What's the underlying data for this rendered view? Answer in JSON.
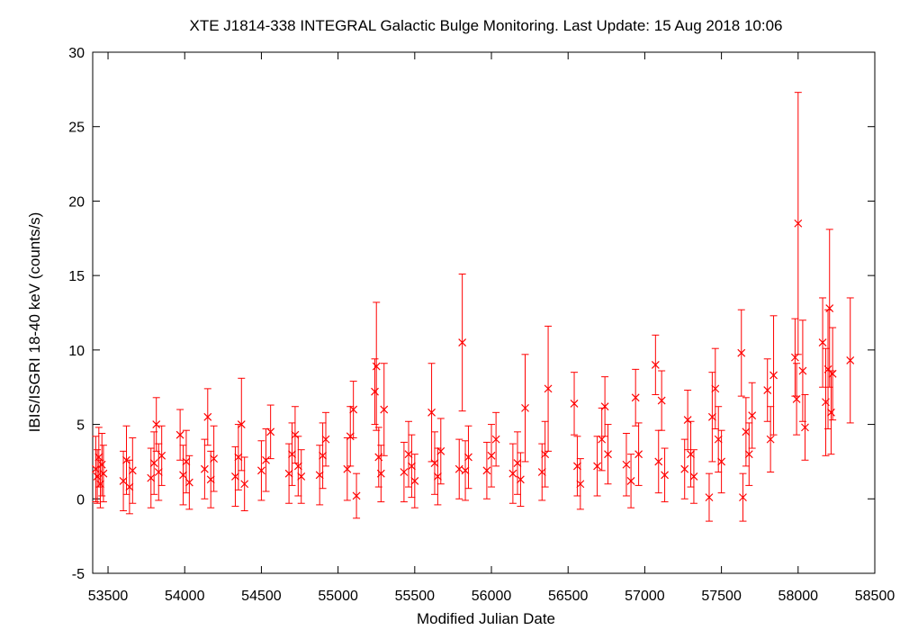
{
  "chart_data": {
    "type": "scatter",
    "title": "XTE J1814-338   INTEGRAL Galactic Bulge Monitoring.  Last Update: 15 Aug 2018 10:06",
    "xlabel": "Modified Julian Date",
    "ylabel": "IBIS/ISGRI 18-40 keV (counts/s)",
    "xlim": [
      53400,
      58500
    ],
    "ylim": [
      -5,
      30
    ],
    "x_ticks": [
      53500,
      54000,
      54500,
      55000,
      55500,
      56000,
      56500,
      57000,
      57500,
      58000,
      58500
    ],
    "y_ticks": [
      -5,
      0,
      5,
      10,
      15,
      20,
      25,
      30
    ],
    "x_tick_labels": [
      "53500",
      "54000",
      "54500",
      "55000",
      "55500",
      "56000",
      "56500",
      "57000",
      "57500",
      "58000",
      "58500"
    ],
    "y_tick_labels": [
      "-5",
      "0",
      "5",
      "10",
      "15",
      "20",
      "25",
      "30"
    ],
    "marker": "x",
    "color": "#ff0000",
    "grid": false,
    "legend": "none",
    "series": [
      {
        "points": [
          {
            "x": 53420,
            "y": 2.0,
            "err": 2.2
          },
          {
            "x": 53430,
            "y": 1.5,
            "err": 1.8
          },
          {
            "x": 53440,
            "y": 2.8,
            "err": 2.0
          },
          {
            "x": 53450,
            "y": 1.0,
            "err": 1.6
          },
          {
            "x": 53460,
            "y": 2.3,
            "err": 2.1
          },
          {
            "x": 53470,
            "y": 1.7,
            "err": 1.9
          },
          {
            "x": 53600,
            "y": 1.2,
            "err": 2.0
          },
          {
            "x": 53620,
            "y": 2.6,
            "err": 2.3
          },
          {
            "x": 53640,
            "y": 0.8,
            "err": 1.8
          },
          {
            "x": 53660,
            "y": 1.9,
            "err": 2.2
          },
          {
            "x": 53780,
            "y": 1.4,
            "err": 2.0
          },
          {
            "x": 53800,
            "y": 2.4,
            "err": 2.1
          },
          {
            "x": 53815,
            "y": 5.0,
            "err": 1.8
          },
          {
            "x": 53830,
            "y": 1.8,
            "err": 1.9
          },
          {
            "x": 53850,
            "y": 2.9,
            "err": 2.0
          },
          {
            "x": 53970,
            "y": 4.3,
            "err": 1.7
          },
          {
            "x": 53990,
            "y": 1.6,
            "err": 2.0
          },
          {
            "x": 54010,
            "y": 2.5,
            "err": 2.1
          },
          {
            "x": 54030,
            "y": 1.1,
            "err": 1.8
          },
          {
            "x": 54130,
            "y": 2.0,
            "err": 2.0
          },
          {
            "x": 54150,
            "y": 5.5,
            "err": 1.9
          },
          {
            "x": 54170,
            "y": 1.3,
            "err": 1.9
          },
          {
            "x": 54190,
            "y": 2.7,
            "err": 2.2
          },
          {
            "x": 54330,
            "y": 1.5,
            "err": 2.0
          },
          {
            "x": 54350,
            "y": 2.8,
            "err": 2.2
          },
          {
            "x": 54370,
            "y": 5.0,
            "err": 3.1
          },
          {
            "x": 54390,
            "y": 1.0,
            "err": 1.8
          },
          {
            "x": 54500,
            "y": 1.9,
            "err": 2.0
          },
          {
            "x": 54530,
            "y": 2.6,
            "err": 2.1
          },
          {
            "x": 54560,
            "y": 4.5,
            "err": 1.8
          },
          {
            "x": 54680,
            "y": 1.7,
            "err": 2.0
          },
          {
            "x": 54700,
            "y": 3.0,
            "err": 2.1
          },
          {
            "x": 54720,
            "y": 4.3,
            "err": 1.9
          },
          {
            "x": 54740,
            "y": 2.2,
            "err": 2.0
          },
          {
            "x": 54760,
            "y": 1.5,
            "err": 1.8
          },
          {
            "x": 54880,
            "y": 1.6,
            "err": 2.0
          },
          {
            "x": 54900,
            "y": 2.9,
            "err": 2.2
          },
          {
            "x": 54920,
            "y": 4.0,
            "err": 1.8
          },
          {
            "x": 55060,
            "y": 2.0,
            "err": 2.1
          },
          {
            "x": 55080,
            "y": 4.2,
            "err": 2.0
          },
          {
            "x": 55100,
            "y": 6.0,
            "err": 1.9
          },
          {
            "x": 55120,
            "y": 0.2,
            "err": 1.5
          },
          {
            "x": 55240,
            "y": 7.2,
            "err": 2.2
          },
          {
            "x": 55250,
            "y": 8.9,
            "err": 4.3
          },
          {
            "x": 55265,
            "y": 2.8,
            "err": 2.0
          },
          {
            "x": 55280,
            "y": 1.7,
            "err": 1.9
          },
          {
            "x": 55300,
            "y": 6.0,
            "err": 3.1
          },
          {
            "x": 55430,
            "y": 1.8,
            "err": 2.0
          },
          {
            "x": 55460,
            "y": 3.0,
            "err": 2.2
          },
          {
            "x": 55480,
            "y": 2.2,
            "err": 2.1
          },
          {
            "x": 55500,
            "y": 1.2,
            "err": 1.8
          },
          {
            "x": 55610,
            "y": 5.8,
            "err": 3.3
          },
          {
            "x": 55630,
            "y": 2.4,
            "err": 2.1
          },
          {
            "x": 55650,
            "y": 1.5,
            "err": 1.9
          },
          {
            "x": 55670,
            "y": 3.2,
            "err": 2.2
          },
          {
            "x": 55790,
            "y": 2.0,
            "err": 2.0
          },
          {
            "x": 55810,
            "y": 10.5,
            "err": 4.6
          },
          {
            "x": 55830,
            "y": 1.9,
            "err": 2.0
          },
          {
            "x": 55850,
            "y": 2.8,
            "err": 2.1
          },
          {
            "x": 55970,
            "y": 1.9,
            "err": 1.9
          },
          {
            "x": 56000,
            "y": 2.9,
            "err": 2.1
          },
          {
            "x": 56030,
            "y": 4.0,
            "err": 1.8
          },
          {
            "x": 56140,
            "y": 1.7,
            "err": 2.0
          },
          {
            "x": 56170,
            "y": 2.4,
            "err": 2.1
          },
          {
            "x": 56190,
            "y": 1.3,
            "err": 1.8
          },
          {
            "x": 56220,
            "y": 6.1,
            "err": 3.6
          },
          {
            "x": 56330,
            "y": 1.8,
            "err": 1.9
          },
          {
            "x": 56350,
            "y": 3.0,
            "err": 2.2
          },
          {
            "x": 56370,
            "y": 7.4,
            "err": 4.2
          },
          {
            "x": 56540,
            "y": 6.4,
            "err": 2.1
          },
          {
            "x": 56560,
            "y": 2.2,
            "err": 2.0
          },
          {
            "x": 56580,
            "y": 1.0,
            "err": 1.7
          },
          {
            "x": 56690,
            "y": 2.2,
            "err": 2.0
          },
          {
            "x": 56720,
            "y": 4.0,
            "err": 2.1
          },
          {
            "x": 56740,
            "y": 6.2,
            "err": 2.0
          },
          {
            "x": 56760,
            "y": 3.0,
            "err": 2.0
          },
          {
            "x": 56880,
            "y": 2.3,
            "err": 2.1
          },
          {
            "x": 56910,
            "y": 1.2,
            "err": 1.8
          },
          {
            "x": 56940,
            "y": 6.8,
            "err": 1.9
          },
          {
            "x": 56960,
            "y": 3.0,
            "err": 2.1
          },
          {
            "x": 57070,
            "y": 9.0,
            "err": 2.0
          },
          {
            "x": 57090,
            "y": 2.5,
            "err": 2.1
          },
          {
            "x": 57110,
            "y": 6.6,
            "err": 2.0
          },
          {
            "x": 57130,
            "y": 1.6,
            "err": 1.8
          },
          {
            "x": 57260,
            "y": 2.0,
            "err": 2.0
          },
          {
            "x": 57280,
            "y": 5.3,
            "err": 2.0
          },
          {
            "x": 57300,
            "y": 3.0,
            "err": 2.2
          },
          {
            "x": 57320,
            "y": 1.5,
            "err": 1.8
          },
          {
            "x": 57420,
            "y": 0.1,
            "err": 1.6
          },
          {
            "x": 57440,
            "y": 5.5,
            "err": 3.0
          },
          {
            "x": 57460,
            "y": 7.4,
            "err": 2.7
          },
          {
            "x": 57480,
            "y": 4.0,
            "err": 2.2
          },
          {
            "x": 57500,
            "y": 2.5,
            "err": 2.1
          },
          {
            "x": 57630,
            "y": 9.8,
            "err": 2.9
          },
          {
            "x": 57640,
            "y": 0.1,
            "err": 1.6
          },
          {
            "x": 57660,
            "y": 4.5,
            "err": 2.3
          },
          {
            "x": 57680,
            "y": 3.0,
            "err": 2.1
          },
          {
            "x": 57700,
            "y": 5.6,
            "err": 2.2
          },
          {
            "x": 57800,
            "y": 7.3,
            "err": 2.1
          },
          {
            "x": 57820,
            "y": 4.0,
            "err": 2.2
          },
          {
            "x": 57840,
            "y": 8.3,
            "err": 4.0
          },
          {
            "x": 57980,
            "y": 9.5,
            "err": 2.6
          },
          {
            "x": 57990,
            "y": 6.7,
            "err": 2.4
          },
          {
            "x": 58000,
            "y": 18.5,
            "err": 8.8
          },
          {
            "x": 58030,
            "y": 8.6,
            "err": 3.4
          },
          {
            "x": 58045,
            "y": 4.8,
            "err": 2.2
          },
          {
            "x": 58160,
            "y": 10.5,
            "err": 3.0
          },
          {
            "x": 58180,
            "y": 6.5,
            "err": 3.6
          },
          {
            "x": 58195,
            "y": 8.7,
            "err": 4.0
          },
          {
            "x": 58205,
            "y": 12.8,
            "err": 5.3
          },
          {
            "x": 58215,
            "y": 5.8,
            "err": 2.8
          },
          {
            "x": 58225,
            "y": 8.4,
            "err": 3.1
          },
          {
            "x": 58340,
            "y": 9.3,
            "err": 4.2
          }
        ]
      }
    ]
  }
}
